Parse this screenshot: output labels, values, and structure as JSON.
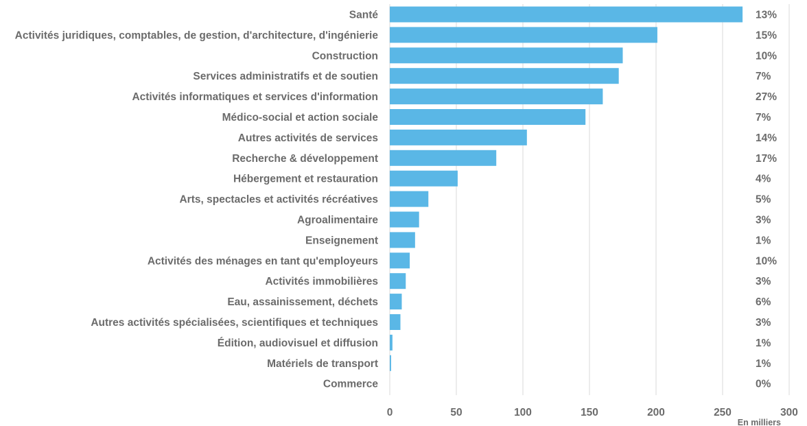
{
  "chart_data": {
    "type": "bar",
    "orientation": "horizontal",
    "categories": [
      "Santé",
      "Activités juridiques, comptables, de gestion, d'architecture, d'ingénierie",
      "Construction",
      "Services administratifs et de soutien",
      "Activités informatiques et services d'information",
      "Médico-social et action sociale",
      "Autres activités de services",
      "Recherche & développement",
      "Hébergement et restauration",
      "Arts, spectacles et activités récréatives",
      "Agroalimentaire",
      "Enseignement",
      "Activités des ménages en tant qu'employeurs",
      "Activités immobilières",
      "Eau, assainissement, déchets",
      "Autres activités spécialisées, scientifiques et techniques",
      "Édition, audiovisuel et diffusion",
      "Matériels de transport",
      "Commerce"
    ],
    "values": [
      265,
      201,
      175,
      172,
      160,
      147,
      103,
      80,
      51,
      29,
      22,
      19,
      15,
      12,
      9,
      8,
      2,
      1,
      0
    ],
    "percentages": [
      "13%",
      "15%",
      "10%",
      "7%",
      "27%",
      "7%",
      "14%",
      "17%",
      "4%",
      "5%",
      "3%",
      "1%",
      "10%",
      "3%",
      "6%",
      "3%",
      "1%",
      "1%",
      "0%"
    ],
    "xlim": [
      0,
      300
    ],
    "xticks": [
      0,
      50,
      100,
      150,
      200,
      250,
      300
    ],
    "unit_label": "En milliers",
    "title": "",
    "xlabel": "",
    "ylabel": "",
    "grid": "vertical",
    "legend": "none",
    "bar_color": "#5ab7e6",
    "grid_color": "#d9d9d9",
    "text_color": "#6b6b6b"
  }
}
